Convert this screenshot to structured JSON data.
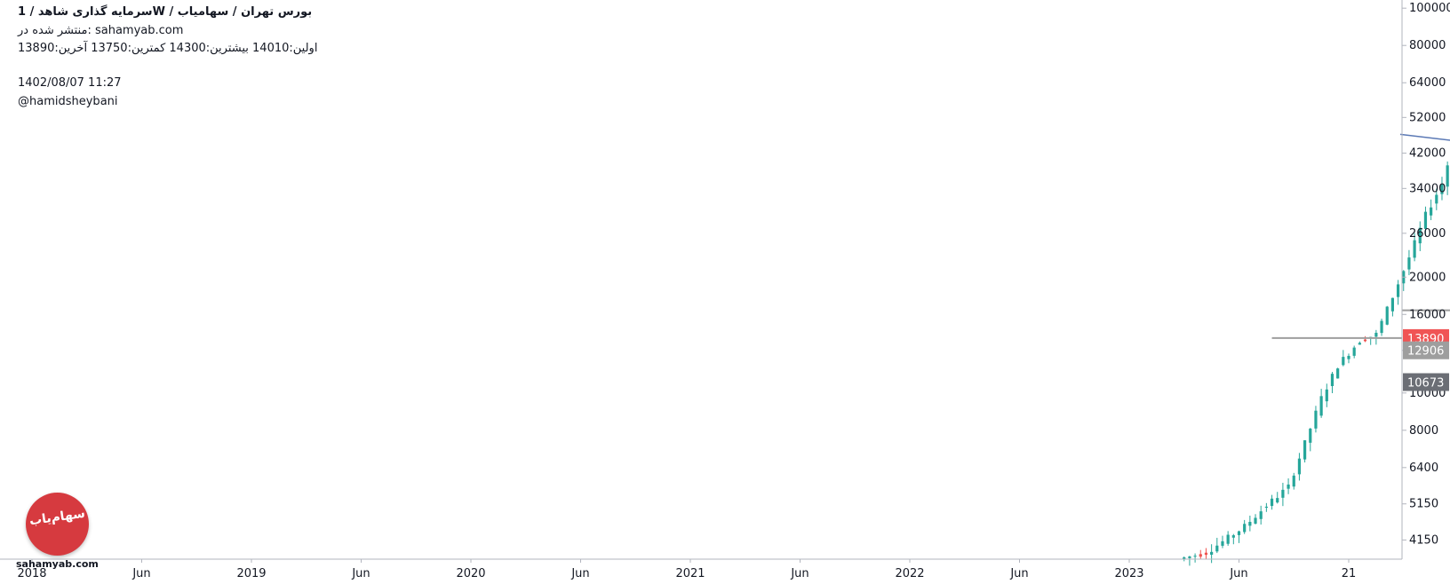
{
  "header": {
    "title": "سرمایه  گذاری  شاهد /  1W  /  بورس تهران / سهامیاب",
    "published": "منتشر شده در: sahamyab.com",
    "ohlc": "اولین:14010  بیشترین:14300  کمترین:13750  آخرین:13890",
    "datetime": "1402/08/07 11:27",
    "author": "@hamidsheybani"
  },
  "logo": {
    "text": "سهام‌یاب",
    "caption": "sahamyab.com"
  },
  "colors": {
    "up": "#26a69a",
    "down": "#ef5350",
    "axis": "#b2b5be",
    "hline": "#9e9e9e",
    "pink_box": "#fdecec",
    "blue_box": "#eceefb",
    "price_tag": "#f05455",
    "gray_tag": "#9e9e9e",
    "dark_tag": "#6b6e75",
    "trend": "#5b79b5"
  },
  "chart_data": {
    "type": "candlestick",
    "scale": "log",
    "timeframe": "1W",
    "x_ticks": [
      "2018",
      "Jun",
      "2019",
      "Jun",
      "2020",
      "Jun",
      "2021",
      "Jun",
      "2022",
      "Jun",
      "2023",
      "Jun",
      "21"
    ],
    "y_ticks": [
      4150,
      5150,
      6400,
      8000,
      10000,
      12906,
      16000,
      20000,
      26000,
      34000,
      42000,
      52000,
      64000,
      80000,
      100000
    ],
    "y_tick_labels": [
      "4150",
      "5150",
      "6400",
      "8000",
      "10000",
      "12906",
      "16000",
      "20000",
      "26000",
      "34000",
      "42000",
      "52000",
      "64000",
      "80000",
      "100000"
    ],
    "ylim": [
      3700,
      105000
    ],
    "last_price": 13890,
    "price_tags": [
      {
        "label": "13890",
        "value": 13890,
        "style": "red"
      },
      {
        "label": "12906",
        "value": 12906,
        "style": "gray"
      },
      {
        "label": "10673",
        "value": 10673,
        "style": "dark"
      }
    ],
    "horizontal_lines": [
      {
        "price": 13890,
        "x_from": 11.3,
        "x_to": 30.0,
        "width": 2
      },
      {
        "price": 16400,
        "x_from": 27.0,
        "x_to": 30.0,
        "width": 2
      }
    ],
    "trend_line": {
      "x_from": 28.2,
      "y_from": 13700,
      "x_to": 30.0,
      "y_to": 47000
    },
    "boxes": [
      {
        "x_from": 13.1,
        "x_to": 17.05,
        "y_from": 10300,
        "y_to": 57000,
        "color": "pink"
      },
      {
        "x_from": 18.1,
        "x_to": 20.45,
        "y_from": 6300,
        "y_to": 15500,
        "color": "pink"
      },
      {
        "x_from": 21.35,
        "x_to": 23.4,
        "y_from": 5000,
        "y_to": 9000,
        "color": "pink"
      },
      {
        "x_from": 23.4,
        "x_to": 24.6,
        "y_from": 5000,
        "y_to": 9200,
        "color": "blue"
      },
      {
        "x_from": 24.9,
        "x_to": 25.95,
        "y_from": 7000,
        "y_to": 28500,
        "color": "blue"
      }
    ],
    "close_path": [
      [
        10.45,
        3700
      ],
      [
        10.7,
        3850
      ],
      [
        10.9,
        4200
      ],
      [
        11.05,
        4500
      ],
      [
        11.25,
        5100
      ],
      [
        11.45,
        5700
      ],
      [
        11.6,
        7400
      ],
      [
        11.75,
        9700
      ],
      [
        11.9,
        11800
      ],
      [
        12.1,
        13700
      ],
      [
        12.25,
        14200
      ],
      [
        12.4,
        17800
      ],
      [
        12.55,
        22500
      ],
      [
        12.7,
        29000
      ],
      [
        12.85,
        35000
      ],
      [
        12.95,
        44000
      ],
      [
        13.05,
        52000
      ],
      [
        13.15,
        47000
      ],
      [
        13.3,
        43000
      ],
      [
        13.5,
        36000
      ],
      [
        13.75,
        31500
      ],
      [
        13.95,
        27000
      ],
      [
        14.1,
        22500
      ],
      [
        14.3,
        19500
      ],
      [
        14.5,
        21000
      ],
      [
        14.7,
        18500
      ],
      [
        14.9,
        15000
      ],
      [
        15.05,
        14200
      ],
      [
        15.2,
        16500
      ],
      [
        15.4,
        15500
      ],
      [
        15.6,
        14700
      ],
      [
        15.8,
        14200
      ],
      [
        16.05,
        13900
      ],
      [
        16.3,
        13400
      ],
      [
        16.55,
        12500
      ],
      [
        16.75,
        11200
      ],
      [
        16.95,
        12200
      ],
      [
        17.15,
        11800
      ],
      [
        17.35,
        11400
      ],
      [
        17.55,
        12500
      ],
      [
        17.75,
        14000
      ],
      [
        17.95,
        15000
      ],
      [
        18.1,
        14000
      ],
      [
        18.3,
        12300
      ],
      [
        18.55,
        10800
      ],
      [
        18.75,
        10000
      ],
      [
        18.95,
        10400
      ],
      [
        19.15,
        9400
      ],
      [
        19.35,
        8600
      ],
      [
        19.55,
        8200
      ],
      [
        19.75,
        7400
      ],
      [
        19.95,
        6800
      ],
      [
        20.15,
        6600
      ],
      [
        20.35,
        6900
      ],
      [
        20.55,
        7300
      ],
      [
        20.75,
        7800
      ],
      [
        20.95,
        8400
      ],
      [
        21.15,
        8700
      ],
      [
        21.35,
        8500
      ],
      [
        21.55,
        7900
      ],
      [
        21.75,
        7300
      ],
      [
        21.95,
        6800
      ],
      [
        22.15,
        6300
      ],
      [
        22.35,
        6600
      ],
      [
        22.55,
        6800
      ],
      [
        22.75,
        6300
      ],
      [
        22.95,
        6000
      ],
      [
        23.15,
        5900
      ],
      [
        23.35,
        5400
      ],
      [
        23.55,
        5700
      ],
      [
        23.75,
        6100
      ],
      [
        23.95,
        6500
      ],
      [
        24.15,
        7300
      ],
      [
        24.35,
        8500
      ],
      [
        24.55,
        7600
      ],
      [
        24.75,
        7900
      ],
      [
        24.95,
        8900
      ],
      [
        25.1,
        12500
      ],
      [
        25.25,
        18000
      ],
      [
        25.4,
        21500
      ],
      [
        25.55,
        19200
      ],
      [
        25.7,
        18200
      ],
      [
        25.9,
        16500
      ],
      [
        26.1,
        15000
      ],
      [
        26.25,
        13900
      ],
      [
        26.4,
        12300
      ],
      [
        26.55,
        13800
      ],
      [
        26.7,
        16500
      ],
      [
        26.85,
        17500
      ],
      [
        27.0,
        19500
      ],
      [
        27.15,
        18200
      ],
      [
        27.3,
        17400
      ],
      [
        27.45,
        17200
      ]
    ]
  }
}
